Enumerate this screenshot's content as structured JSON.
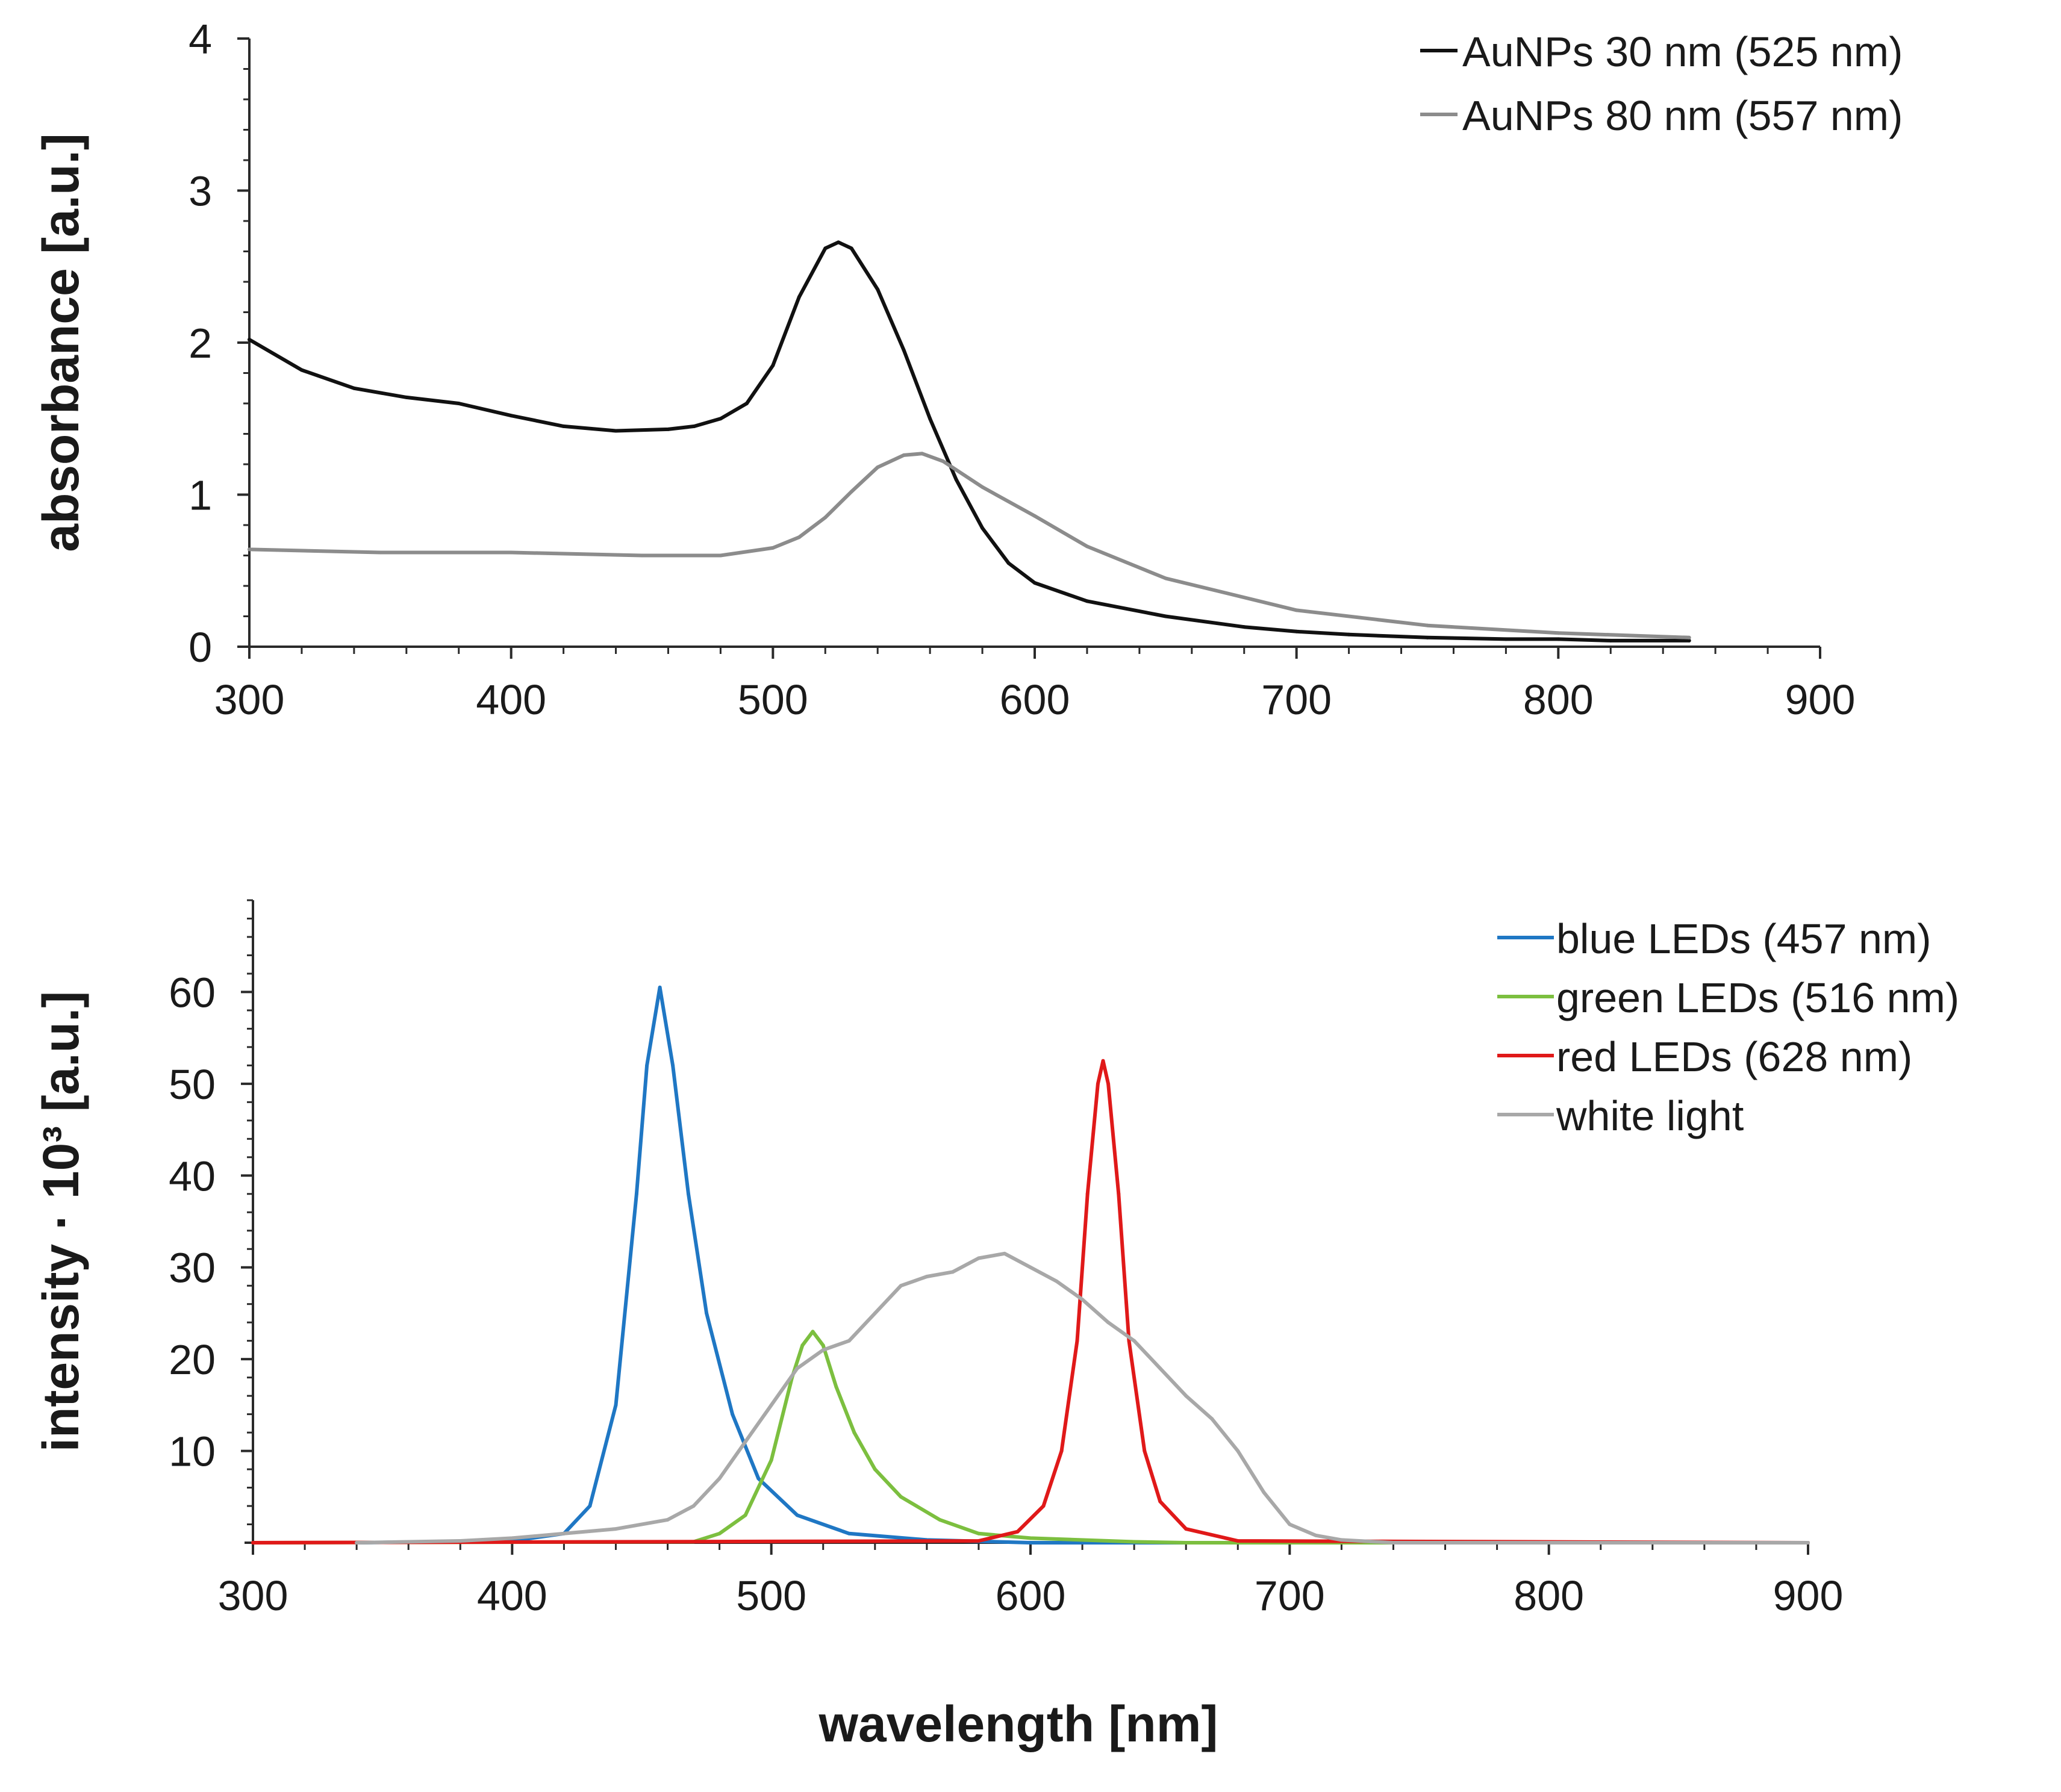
{
  "chart_data": [
    {
      "type": "line",
      "xlabel": "",
      "ylabel": "absorbance [a.u.]",
      "xlim": [
        300,
        900
      ],
      "ylim": [
        0,
        4
      ],
      "x_ticks": [
        300,
        400,
        500,
        600,
        700,
        800,
        900
      ],
      "y_ticks": [
        0,
        1,
        2,
        3,
        4
      ],
      "grid": false,
      "legend_position": "top-right",
      "series": [
        {
          "name": "AuNPs 30 nm (525 nm)",
          "color": "#111111",
          "x": [
            300,
            320,
            340,
            360,
            380,
            400,
            420,
            440,
            460,
            470,
            480,
            490,
            500,
            510,
            520,
            525,
            530,
            540,
            550,
            560,
            570,
            580,
            590,
            600,
            620,
            650,
            680,
            700,
            720,
            750,
            780,
            800,
            820,
            850
          ],
          "y": [
            2.02,
            1.82,
            1.7,
            1.64,
            1.6,
            1.52,
            1.45,
            1.42,
            1.43,
            1.45,
            1.5,
            1.6,
            1.85,
            2.3,
            2.62,
            2.66,
            2.62,
            2.35,
            1.95,
            1.5,
            1.1,
            0.78,
            0.55,
            0.42,
            0.3,
            0.2,
            0.13,
            0.1,
            0.08,
            0.06,
            0.05,
            0.05,
            0.04,
            0.04
          ]
        },
        {
          "name": "AuNPs 80 nm (557 nm)",
          "color": "#8c8c8c",
          "x": [
            300,
            350,
            400,
            450,
            480,
            500,
            510,
            520,
            530,
            540,
            550,
            557,
            565,
            580,
            600,
            620,
            650,
            700,
            750,
            800,
            850
          ],
          "y": [
            0.64,
            0.62,
            0.62,
            0.6,
            0.6,
            0.65,
            0.72,
            0.85,
            1.02,
            1.18,
            1.26,
            1.27,
            1.22,
            1.05,
            0.86,
            0.66,
            0.45,
            0.24,
            0.14,
            0.09,
            0.06
          ]
        }
      ]
    },
    {
      "type": "line",
      "xlabel": "wavelength [nm]",
      "ylabel": "intensity · 10³ [a.u.]",
      "xlim": [
        300,
        900
      ],
      "ylim": [
        0,
        70
      ],
      "x_ticks": [
        300,
        400,
        500,
        600,
        700,
        800,
        900
      ],
      "y_ticks": [
        10,
        20,
        30,
        40,
        50,
        60
      ],
      "grid": false,
      "legend_position": "top-right",
      "series": [
        {
          "name": "blue LEDs (457 nm)",
          "color": "#1f77c4",
          "x": [
            340,
            400,
            420,
            430,
            440,
            448,
            452,
            457,
            462,
            468,
            475,
            485,
            495,
            510,
            530,
            560,
            600,
            900
          ],
          "y": [
            0,
            0.2,
            1,
            4,
            15,
            38,
            52,
            60.5,
            52,
            38,
            25,
            14,
            7,
            3,
            1,
            0.3,
            0,
            0
          ]
        },
        {
          "name": "green LEDs (516 nm)",
          "color": "#7cbf3f",
          "x": [
            300,
            470,
            480,
            490,
            500,
            508,
            512,
            516,
            520,
            525,
            532,
            540,
            550,
            565,
            580,
            600,
            640,
            660,
            900
          ],
          "y": [
            0,
            0.1,
            1,
            3,
            9,
            18,
            21.5,
            23,
            21.5,
            17,
            12,
            8,
            5,
            2.5,
            1,
            0.5,
            0.1,
            0,
            0
          ]
        },
        {
          "name": "red LEDs (628 nm)",
          "color": "#e01919",
          "x": [
            300,
            580,
            595,
            605,
            612,
            618,
            622,
            626,
            628,
            630,
            634,
            638,
            644,
            650,
            660,
            680,
            900
          ],
          "y": [
            0,
            0.2,
            1.2,
            4,
            10,
            22,
            38,
            50,
            52.5,
            50,
            38,
            22,
            10,
            4.5,
            1.5,
            0.2,
            0
          ]
        },
        {
          "name": "white light",
          "color": "#a8a8a8",
          "x": [
            340,
            380,
            400,
            420,
            440,
            460,
            470,
            480,
            490,
            500,
            510,
            520,
            530,
            540,
            550,
            560,
            570,
            580,
            590,
            600,
            610,
            620,
            630,
            640,
            650,
            660,
            670,
            680,
            690,
            700,
            710,
            720,
            740,
            800,
            900
          ],
          "y": [
            0,
            0.2,
            0.5,
            1,
            1.5,
            2.5,
            4,
            7,
            11,
            15,
            19,
            21,
            22,
            25,
            28,
            29,
            29.5,
            31,
            31.5,
            30,
            28.5,
            26.5,
            24,
            22,
            19,
            16,
            13.5,
            10,
            5.5,
            2,
            0.8,
            0.3,
            0,
            0,
            0
          ]
        }
      ]
    }
  ]
}
